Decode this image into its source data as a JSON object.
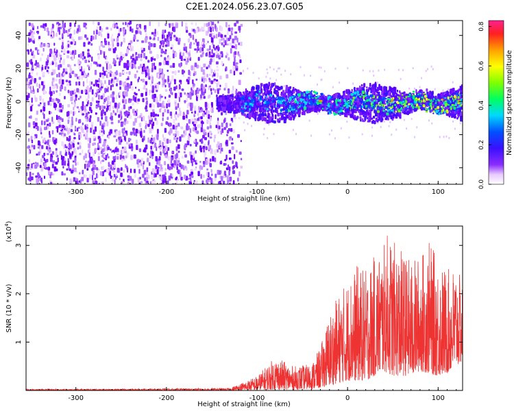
{
  "title": "C2E1.2024.056.23.07.G05",
  "chart_data": [
    {
      "type": "heatmap",
      "xlabel": "Height of straight line (km)",
      "ylabel": "Frequency (Hz)",
      "xlim": [
        -355,
        127
      ],
      "ylim": [
        -50,
        49
      ],
      "xticks": [
        -300,
        -200,
        -100,
        0,
        100
      ],
      "yticks": [
        -40,
        -20,
        0,
        20,
        40
      ],
      "colorbar": {
        "label": "Normalized spectral amplitude",
        "range": [
          0,
          0.83
        ],
        "ticks": [
          "0.0",
          "0.2",
          "0.4",
          "0.6",
          "0.8"
        ],
        "tick_values": [
          0.0,
          0.2,
          0.4,
          0.6,
          0.8
        ]
      },
      "regions": [
        {
          "x_from": -355,
          "x_to": -120,
          "freq_from": -50,
          "freq_to": 49,
          "amplitude": "low (0.0–0.1, purple)"
        },
        {
          "x_from": -120,
          "x_to": 127,
          "freq_from": -12,
          "freq_to": 12,
          "amplitude": "0.1–0.45 (blue to cyan/green), peaks near 0.6–0.8 close to 0 Hz"
        }
      ],
      "grid": false
    },
    {
      "type": "line",
      "xlabel": "Height of straight line (km)",
      "ylabel": "SNR (10 * v/v)",
      "yscale_label": "(x10",
      "yscale_exp": "4",
      "yscale_close": ")",
      "xlim": [
        -355,
        127
      ],
      "ylim": [
        0,
        3.4
      ],
      "xticks": [
        -300,
        -200,
        -100,
        0,
        100
      ],
      "yticks": [
        1,
        2,
        3
      ],
      "color": "#ee3333",
      "envelope": {
        "x": [
          -355,
          -300,
          -200,
          -130,
          -100,
          -80,
          -60,
          -40,
          -30,
          -20,
          -10,
          0,
          10,
          20,
          30,
          40,
          45,
          50,
          60,
          70,
          80,
          90,
          100,
          110,
          120,
          127
        ],
        "max": [
          0.03,
          0.03,
          0.04,
          0.05,
          0.3,
          0.7,
          0.5,
          0.55,
          0.9,
          1.6,
          2.0,
          2.3,
          2.6,
          2.5,
          2.8,
          3.0,
          3.35,
          3.1,
          2.9,
          2.7,
          2.8,
          3.1,
          2.7,
          2.5,
          2.6,
          2.2
        ],
        "min": [
          0.0,
          0.0,
          0.0,
          0.0,
          0.01,
          0.02,
          0.02,
          0.03,
          0.05,
          0.1,
          0.15,
          0.2,
          0.2,
          0.2,
          0.3,
          0.4,
          0.35,
          0.3,
          0.3,
          0.3,
          0.4,
          0.35,
          0.3,
          0.35,
          0.5,
          0.6
        ]
      },
      "grid": false
    }
  ]
}
